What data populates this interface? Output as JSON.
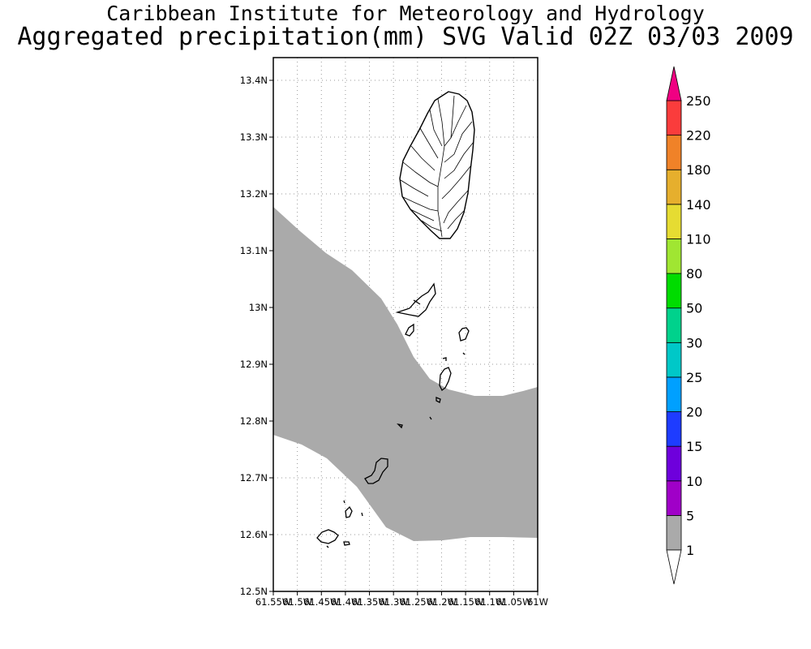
{
  "header": {
    "institute": "Caribbean Institute for Meteorology and Hydrology",
    "product": "Aggregated precipitation(mm) SVG Valid 02Z 03/03 2009"
  },
  "map": {
    "region": "St. Vincent and the Grenadines",
    "lat_ticks": [
      "13.4N",
      "13.3N",
      "13.2N",
      "13.1N",
      "13N",
      "12.9N",
      "12.8N",
      "12.7N",
      "12.6N",
      "12.5N"
    ],
    "lon_ticks": [
      "61.55W",
      "61.5W",
      "61.45W",
      "61.4W",
      "61.35W",
      "61.3W",
      "61.25W",
      "61.2W",
      "61.15W",
      "61.1W",
      "61.05W",
      "61W"
    ],
    "lat_range": [
      12.5,
      13.44
    ],
    "lon_range": [
      -61.55,
      -61.0
    ],
    "precip_band_class": "1-5",
    "precip_band_color": "#aaaaaa",
    "grid": true
  },
  "colorbar": {
    "levels": [
      {
        "label": "1",
        "color": "#aaaaaa"
      },
      {
        "label": "5",
        "color": "#a000c8"
      },
      {
        "label": "10",
        "color": "#6e00dc"
      },
      {
        "label": "15",
        "color": "#1e3cff"
      },
      {
        "label": "20",
        "color": "#00a0ff"
      },
      {
        "label": "25",
        "color": "#00c8c8"
      },
      {
        "label": "30",
        "color": "#00d28c"
      },
      {
        "label": "50",
        "color": "#00dc00"
      },
      {
        "label": "80",
        "color": "#a0e632"
      },
      {
        "label": "110",
        "color": "#e6dc32"
      },
      {
        "label": "140",
        "color": "#e6af2d"
      },
      {
        "label": "180",
        "color": "#f08228"
      },
      {
        "label": "220",
        "color": "#fa3c3c"
      },
      {
        "label": "250",
        "color": "#f00082"
      }
    ],
    "below_color": "#ffffff",
    "above_color": "#f00082"
  }
}
